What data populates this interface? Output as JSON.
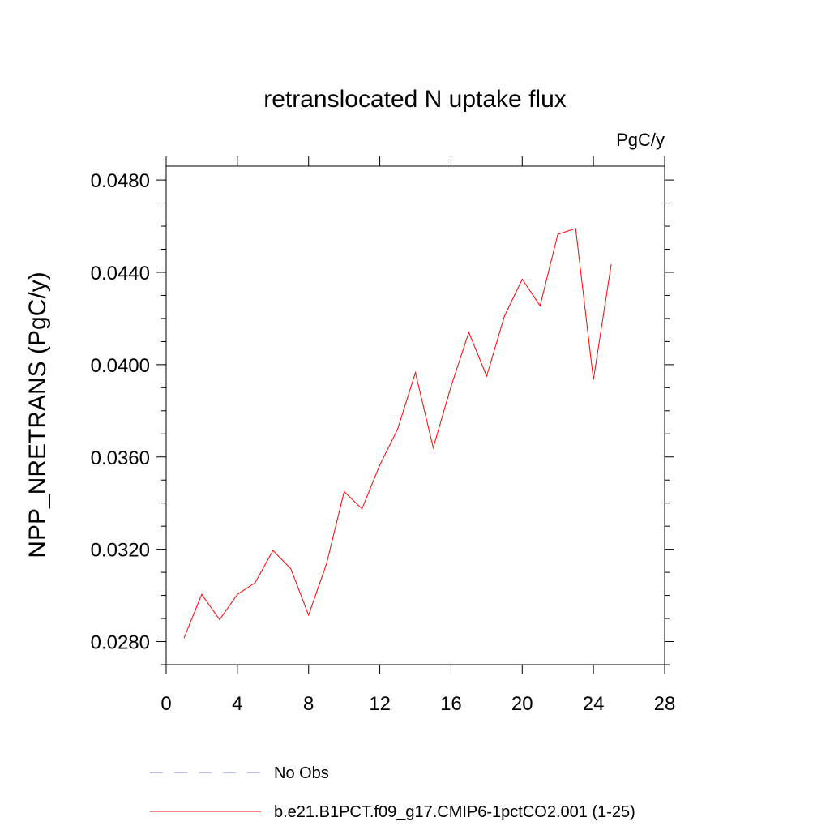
{
  "chart_data": {
    "type": "line",
    "title": "retranslocated N uptake flux",
    "units_label": "PgC/y",
    "ylabel": "NPP_NRETRANS  (PgC/y)",
    "xlabel": "",
    "xlim": [
      0,
      28
    ],
    "ylim": [
      0.027,
      0.0486
    ],
    "x_ticks": [
      0,
      4,
      8,
      12,
      16,
      20,
      24,
      28
    ],
    "x_tick_labels": [
      "0",
      "4",
      "8",
      "12",
      "16",
      "20",
      "24",
      "28"
    ],
    "y_ticks": [
      0.028,
      0.032,
      0.036,
      0.04,
      0.044,
      0.048
    ],
    "y_tick_labels": [
      "0.0280",
      "0.0320",
      "0.0360",
      "0.0400",
      "0.0440",
      "0.0480"
    ],
    "grid": false,
    "legend_position": "bottom",
    "series": [
      {
        "name": "b.e21.B1PCT.f09_g17.CMIP6-1pctCO2.001 (1-25)",
        "color": "#ff0000",
        "style": "solid",
        "x": [
          1,
          2,
          3,
          4,
          5,
          6,
          7,
          8,
          9,
          10,
          11,
          12,
          13,
          14,
          15,
          16,
          17,
          18,
          19,
          20,
          21,
          22,
          23,
          24,
          25
        ],
        "values": [
          0.02815,
          0.03005,
          0.02895,
          0.03005,
          0.03055,
          0.03195,
          0.03115,
          0.02915,
          0.03135,
          0.0345,
          0.03375,
          0.03565,
          0.0372,
          0.03965,
          0.0364,
          0.03905,
          0.0414,
          0.0395,
          0.0421,
          0.0437,
          0.04255,
          0.04565,
          0.0459,
          0.03935,
          0.04435
        ]
      }
    ],
    "legend": [
      {
        "label": "No Obs",
        "color": "#7b7bd6",
        "style": "dashed"
      },
      {
        "label": "b.e21.B1PCT.f09_g17.CMIP6-1pctCO2.001 (1-25)",
        "color": "#ff0000",
        "style": "solid"
      }
    ]
  }
}
